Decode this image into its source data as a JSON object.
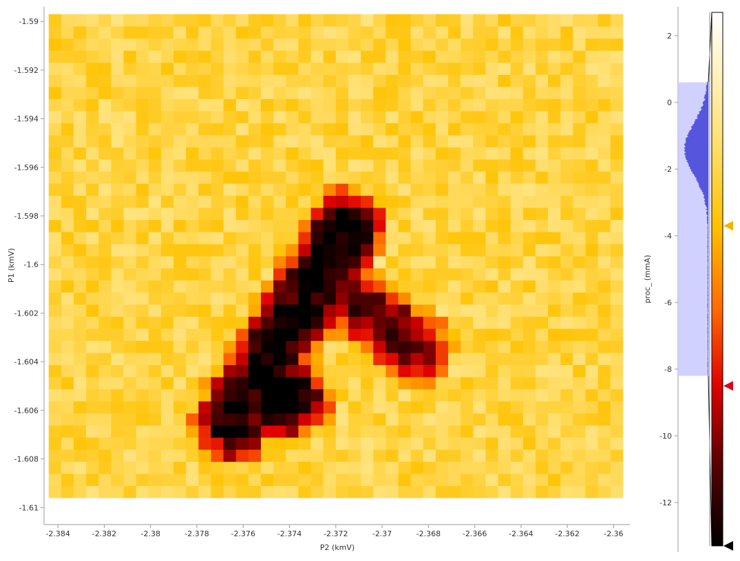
{
  "chart_data": {
    "type": "heatmap",
    "xlabel": "P2 (kmV)",
    "ylabel": "P1 (kmV)",
    "colorbar_label": "proc_ (mmA)",
    "x_ticks": [
      -2.384,
      -2.382,
      -2.38,
      -2.378,
      -2.376,
      -2.374,
      -2.372,
      -2.37,
      -2.368,
      -2.366,
      -2.364,
      -2.362,
      -2.36
    ],
    "y_ticks": [
      -1.59,
      -1.592,
      -1.594,
      -1.596,
      -1.598,
      -1.6,
      -1.602,
      -1.604,
      -1.606,
      -1.608,
      -1.61
    ],
    "x_tick_labels": [
      "-2.384",
      "-2.382",
      "-2.38",
      "-2.378",
      "-2.376",
      "-2.374",
      "-2.372",
      "-2.37",
      "-2.368",
      "-2.366",
      "-2.364",
      "-2.362",
      "-2.36"
    ],
    "y_tick_labels": [
      "-1.59",
      "-1.592",
      "-1.594",
      "-1.596",
      "-1.598",
      "-1.6",
      "-1.602",
      "-1.604",
      "-1.606",
      "-1.608",
      "-1.61"
    ],
    "x_range": [
      -2.3846,
      -2.3593
    ],
    "y_range": [
      -1.6107,
      -1.5894
    ],
    "cell_x_range": [
      -2.3844,
      -2.3596
    ],
    "cell_y_range": [
      -1.6096,
      -1.5897
    ],
    "grid_cols": 46,
    "grid_rows": 40,
    "background_value": -2.2,
    "noise_amplitude": 1.3,
    "feature": {
      "description_points_x": [
        -2.3725,
        -2.3695
      ],
      "description_points_y": [
        -1.6062,
        -1.6015
      ],
      "bottom_left_blob": {
        "x_center": -2.3745,
        "y_center": -1.6055,
        "radius_x": 0.0018,
        "radius_y": 0.0014,
        "depth": -12.5
      },
      "ridge": {
        "x_start": -2.3765,
        "y_start": -1.6065,
        "x_end": -2.3715,
        "y_end": -1.5985,
        "depth": -11.5,
        "width": 0.0012
      },
      "arm": {
        "x_start": -2.3725,
        "y_start": -1.6005,
        "x_end": -2.3685,
        "y_end": -1.6035,
        "depth": -8.5,
        "width": 0.0011
      }
    },
    "colorbar": {
      "range": [
        -13.3,
        2.7
      ],
      "ticks": [
        2,
        0,
        -2,
        -4,
        -6,
        -8,
        -10,
        -12
      ],
      "tick_labels": [
        "2",
        "0",
        "-2",
        "-4",
        "-6",
        "-8",
        "-10",
        "-12"
      ],
      "level_markers": [
        -3.7,
        -8.5,
        -13.3
      ],
      "histogram_range": [
        -8.2,
        0.6
      ],
      "histogram_peak_value": -1.4
    },
    "colormap": [
      {
        "v": -13.3,
        "c": "#000000"
      },
      {
        "v": -10.8,
        "c": "#5a0000"
      },
      {
        "v": -8.5,
        "c": "#e00000"
      },
      {
        "v": -6.2,
        "c": "#ff6a00"
      },
      {
        "v": -3.7,
        "c": "#ffc200"
      },
      {
        "v": -1.0,
        "c": "#ffe27a"
      },
      {
        "v": 2.7,
        "c": "#ffffff"
      }
    ],
    "colors": {
      "histogram_fill": "#ccccff",
      "histogram_line": "#5555dd",
      "marker_upper": "#f5b400",
      "marker_lower": "#e0001a",
      "marker_bottom": "#000000"
    }
  }
}
